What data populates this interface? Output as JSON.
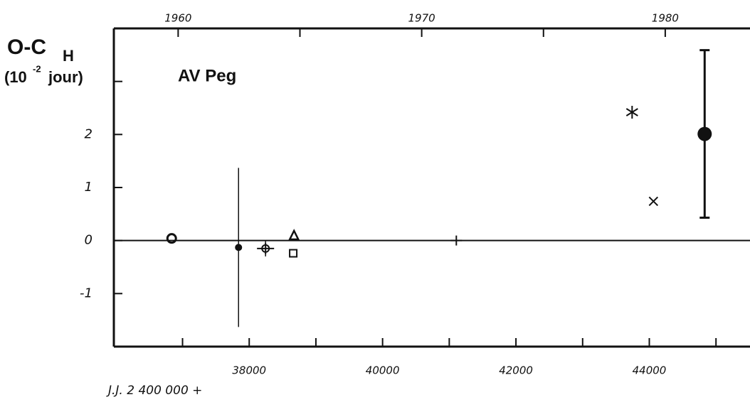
{
  "chart_data": {
    "type": "scatter",
    "title": "AV Peg",
    "ylabel": {
      "main": "O-C",
      "sub": "H",
      "unit_pre": "(10",
      "unit_exp": "-2",
      "unit_post": "jour)"
    },
    "xlabel": "J.J. 2 400 000 +",
    "xlim": [
      35970,
      45510
    ],
    "xticks": [
      38000,
      40000,
      42000,
      44000
    ],
    "xminor_ticks": [
      37000,
      39000,
      41000,
      43000,
      45000
    ],
    "x2lim": [
      1957.36,
      1983.48
    ],
    "x2ticks": [
      1960,
      1970,
      1980
    ],
    "x2minor_ticks": [
      1965,
      1975
    ],
    "ylim": [
      -2,
      4
    ],
    "yticks": [
      -1,
      0,
      1,
      2
    ],
    "yminor_ticks": [
      3
    ],
    "hline": 0,
    "color": "#111111",
    "series": [
      {
        "marker": "open-circle",
        "x": [
          36837
        ],
        "values": [
          0.04
        ]
      },
      {
        "marker": "dot",
        "x": [
          37840
        ],
        "values": [
          -0.13
        ],
        "errors": [
          1.5
        ]
      },
      {
        "marker": "crossed-circle",
        "x": [
          38245
        ],
        "values": [
          -0.15
        ],
        "errors": [
          0.15
        ]
      },
      {
        "marker": "triangle",
        "x": [
          38672
        ],
        "values": [
          0.09
        ]
      },
      {
        "marker": "square",
        "x": [
          38660
        ],
        "values": [
          -0.24
        ]
      },
      {
        "marker": "plus",
        "x": [
          41106
        ],
        "values": [
          0.0
        ]
      },
      {
        "marker": "asterisk",
        "x": [
          43742
        ],
        "values": [
          2.42
        ]
      },
      {
        "marker": "cross",
        "x": [
          44062
        ],
        "values": [
          0.74
        ]
      },
      {
        "marker": "big-dot",
        "x": [
          44830
        ],
        "values": [
          2.01
        ],
        "errors": [
          1.58
        ]
      }
    ]
  }
}
